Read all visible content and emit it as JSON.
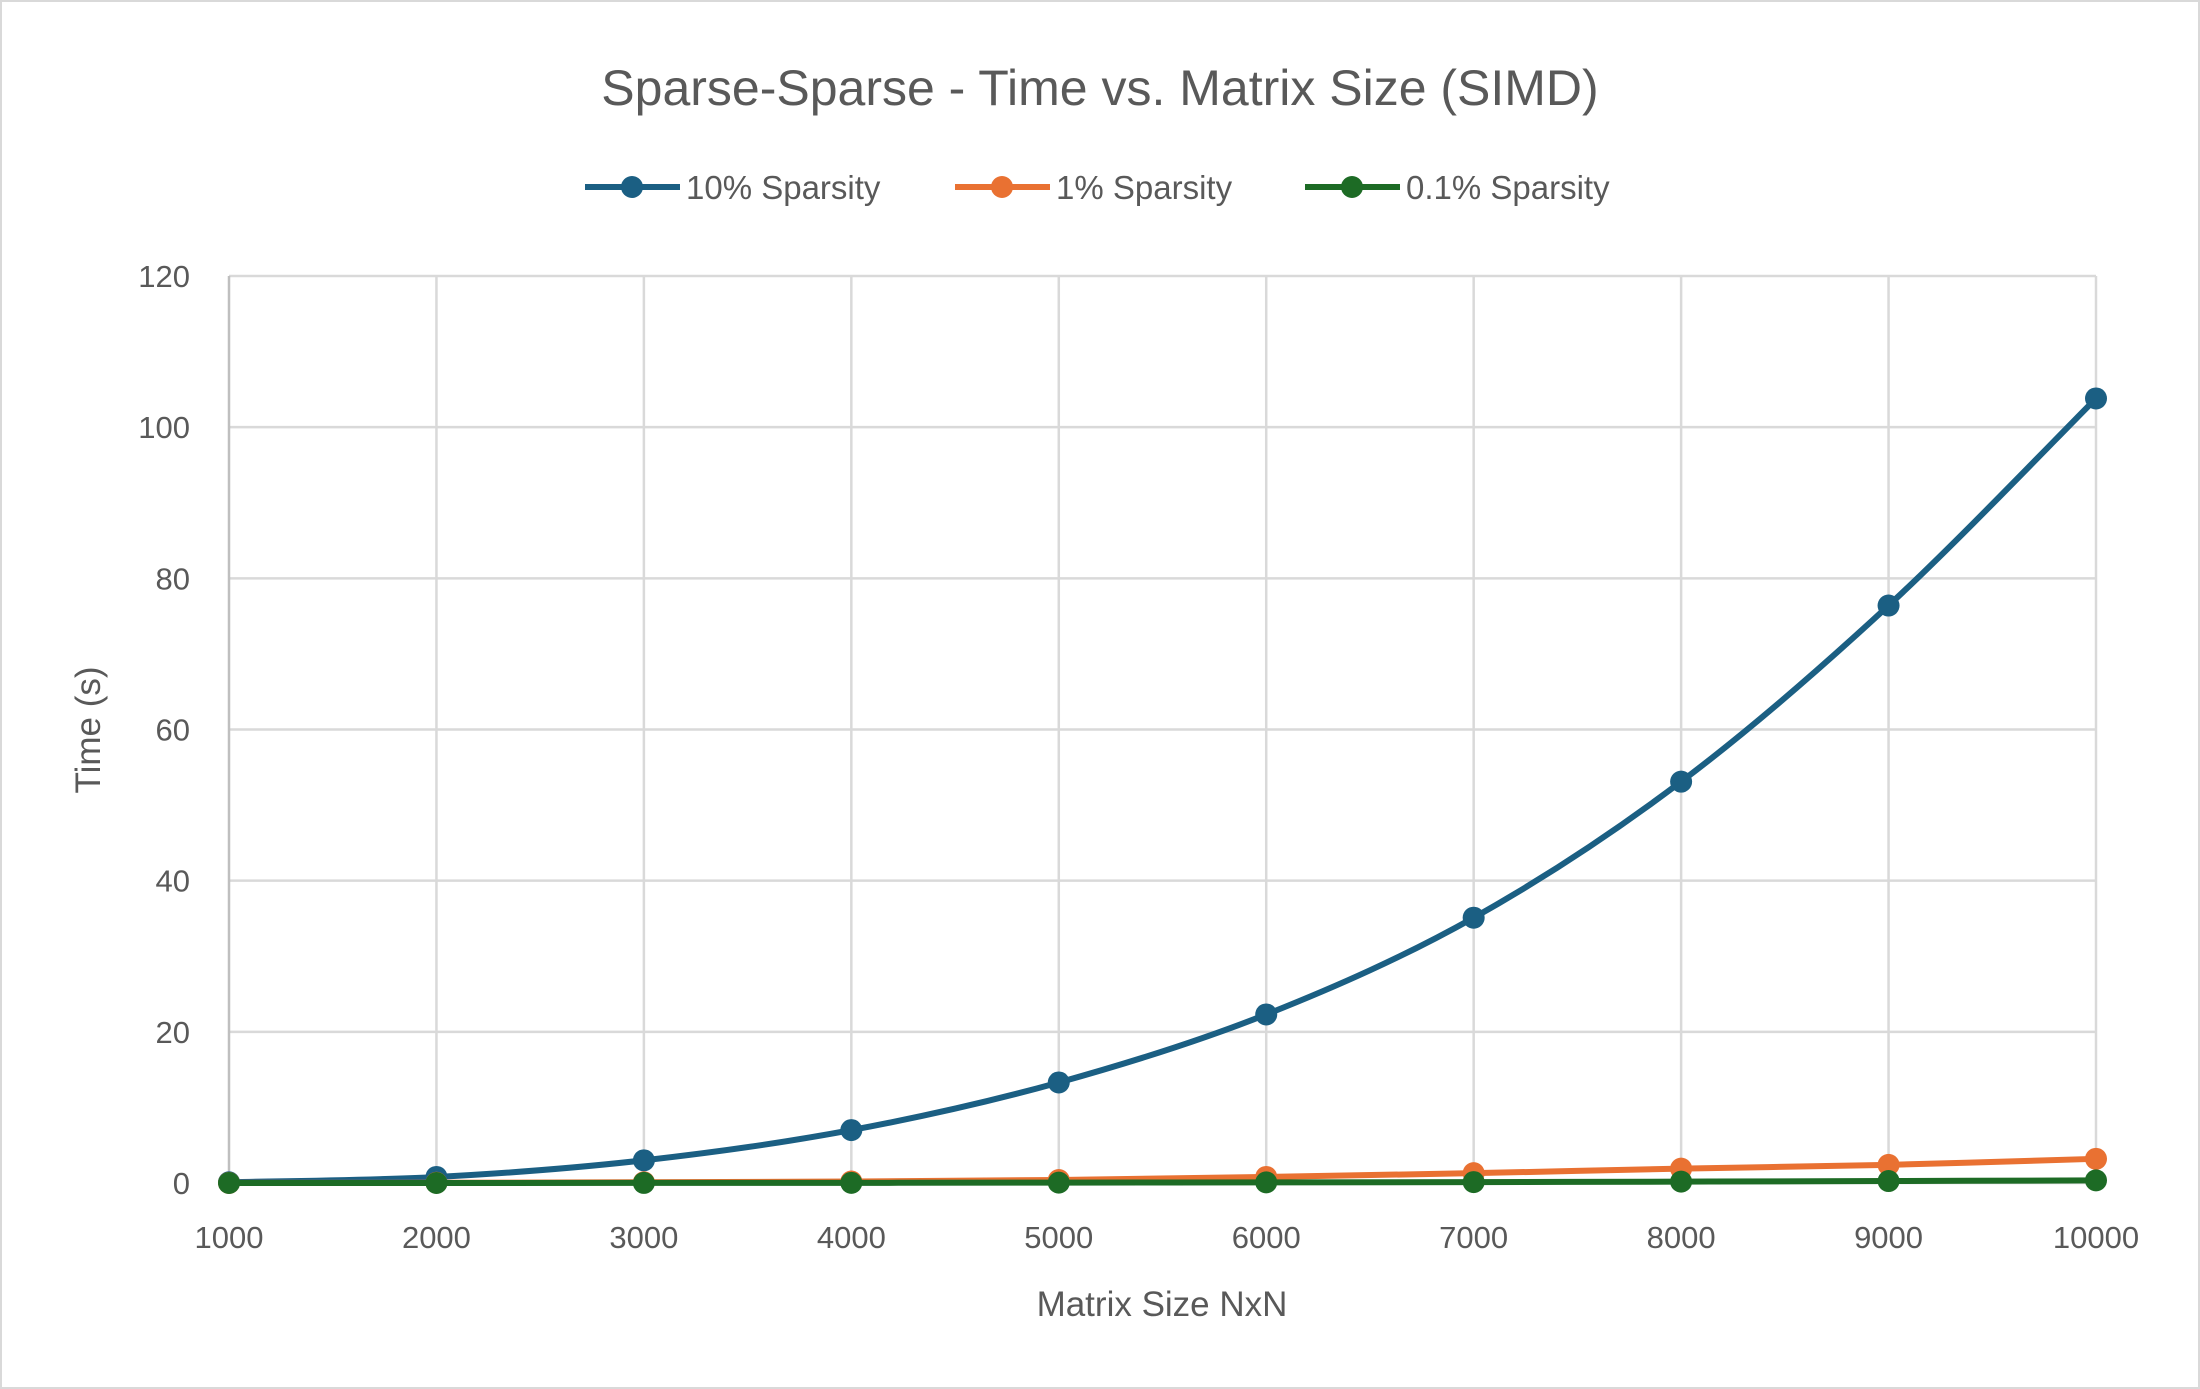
{
  "chart_data": {
    "type": "line",
    "title": "Sparse-Sparse - Time vs. Matrix Size (SIMD)",
    "xlabel": "Matrix Size NxN",
    "ylabel": "Time (s)",
    "x": [
      1000,
      2000,
      3000,
      4000,
      5000,
      6000,
      7000,
      8000,
      9000,
      10000
    ],
    "x_tick_labels": [
      "1000",
      "2000",
      "3000",
      "4000",
      "5000",
      "6000",
      "7000",
      "8000",
      "9000",
      "10000"
    ],
    "y_tick_labels": [
      "0",
      "20",
      "40",
      "60",
      "80",
      "100",
      "120"
    ],
    "ylim": [
      0,
      120
    ],
    "xlim": [
      1000,
      10000
    ],
    "grid": true,
    "legend_position": "top",
    "smooth": true,
    "series": [
      {
        "name": "10% Sparsity",
        "color": "#1b5f83",
        "values": [
          0.1,
          0.8,
          3.0,
          7.0,
          13.3,
          22.3,
          35.1,
          53.1,
          76.4,
          103.8
        ]
      },
      {
        "name": "1% Sparsity",
        "color": "#e97132",
        "values": [
          0.01,
          0.03,
          0.1,
          0.2,
          0.4,
          0.8,
          1.3,
          1.9,
          2.4,
          3.2
        ]
      },
      {
        "name": "0.1% Sparsity",
        "color": "#1d6b25",
        "values": [
          0.0,
          0.0,
          0.01,
          0.02,
          0.05,
          0.08,
          0.12,
          0.18,
          0.26,
          0.35
        ]
      }
    ]
  }
}
